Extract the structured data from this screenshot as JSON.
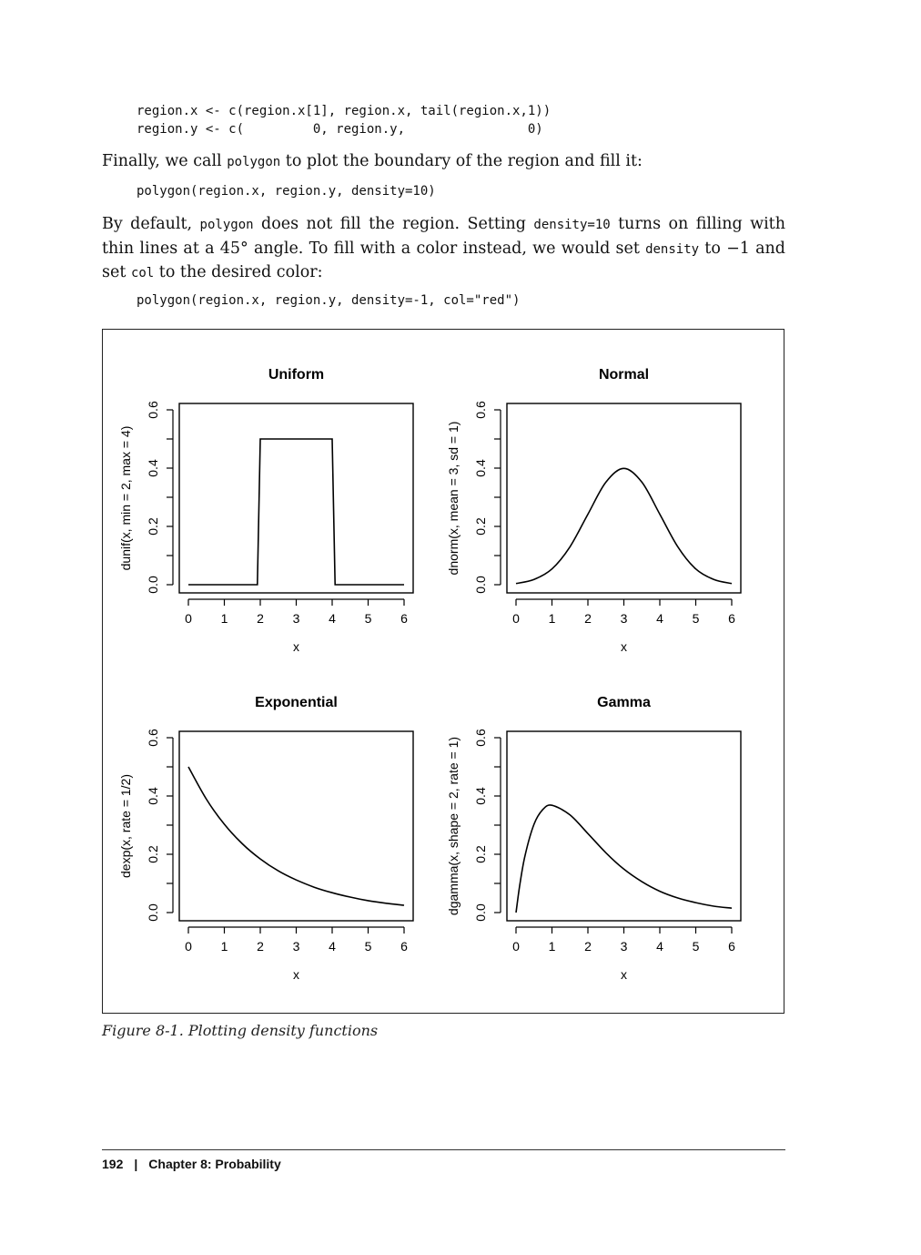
{
  "code1": {
    "line1": "region.x <- c(region.x[1], region.x, tail(region.x,1))",
    "line2": "region.y <- c(         0, region.y,                0)"
  },
  "para1": {
    "t1": "Finally, we call ",
    "c1": "polygon",
    "t2": " to plot the boundary of the region and fill it:"
  },
  "code2": {
    "line1": "polygon(region.x, region.y, density=10)"
  },
  "para2": {
    "t1": "By default, ",
    "c1": "polygon",
    "t2": " does not fill the region. Setting ",
    "c2": "density=10",
    "t3": " turns on filling with thin lines at a 45° angle. To fill with a color instead, we would set ",
    "c3": "density",
    "t4": " to −1 and set ",
    "c4": "col",
    "t5": " to the desired color:"
  },
  "code3": {
    "line1": "polygon(region.x, region.y, density=-1, col=\"red\")"
  },
  "chart_data": [
    {
      "type": "line",
      "title": "Uniform",
      "xlabel": "x",
      "ylabel": "dunif(x, min = 2, max = 4)",
      "xlim": [
        0,
        6
      ],
      "ylim": [
        0,
        0.6
      ],
      "xticks": [
        "0",
        "1",
        "2",
        "3",
        "4",
        "5",
        "6"
      ],
      "yticks": [
        "0.0",
        "0.2",
        "0.4",
        "0.6"
      ],
      "x": [
        0,
        1.92,
        2,
        4,
        4.08,
        6
      ],
      "y": [
        0,
        0,
        0.5,
        0.5,
        0,
        0
      ]
    },
    {
      "type": "line",
      "title": "Normal",
      "xlabel": "x",
      "ylabel": "dnorm(x, mean = 3, sd = 1)",
      "xlim": [
        0,
        6
      ],
      "ylim": [
        0,
        0.6
      ],
      "xticks": [
        "0",
        "1",
        "2",
        "3",
        "4",
        "5",
        "6"
      ],
      "yticks": [
        "0.0",
        "0.2",
        "0.4",
        "0.6"
      ],
      "x": [
        0,
        0.5,
        1,
        1.5,
        2,
        2.5,
        3,
        3.5,
        4,
        4.5,
        5,
        5.5,
        6
      ],
      "y": [
        0.004,
        0.018,
        0.054,
        0.13,
        0.242,
        0.352,
        0.399,
        0.352,
        0.242,
        0.13,
        0.054,
        0.018,
        0.004
      ]
    },
    {
      "type": "line",
      "title": "Exponential",
      "xlabel": "x",
      "ylabel": "dexp(x, rate = 1/2)",
      "xlim": [
        0,
        6
      ],
      "ylim": [
        0,
        0.6
      ],
      "xticks": [
        "0",
        "1",
        "2",
        "3",
        "4",
        "5",
        "6"
      ],
      "yticks": [
        "0.0",
        "0.2",
        "0.4",
        "0.6"
      ],
      "x": [
        0,
        0.5,
        1,
        1.5,
        2,
        2.5,
        3,
        3.5,
        4,
        4.5,
        5,
        5.5,
        6
      ],
      "y": [
        0.5,
        0.389,
        0.303,
        0.236,
        0.184,
        0.143,
        0.112,
        0.087,
        0.068,
        0.053,
        0.041,
        0.032,
        0.025
      ]
    },
    {
      "type": "line",
      "title": "Gamma",
      "xlabel": "x",
      "ylabel": "dgamma(x, shape = 2, rate = 1)",
      "xlim": [
        0,
        6
      ],
      "ylim": [
        0,
        0.6
      ],
      "xticks": [
        "0",
        "1",
        "2",
        "3",
        "4",
        "5",
        "6"
      ],
      "yticks": [
        "0.0",
        "0.2",
        "0.4",
        "0.6"
      ],
      "x": [
        0,
        0.1,
        0.25,
        0.5,
        0.75,
        1,
        1.5,
        2,
        2.5,
        3,
        3.5,
        4,
        4.5,
        5,
        5.5,
        6
      ],
      "y": [
        0,
        0.09,
        0.195,
        0.303,
        0.354,
        0.368,
        0.335,
        0.271,
        0.205,
        0.149,
        0.106,
        0.073,
        0.05,
        0.034,
        0.022,
        0.015
      ]
    }
  ],
  "caption": "Figure 8-1. Plotting density functions",
  "footer": {
    "page": "192",
    "sep": "|",
    "chapter": "Chapter 8:  Probability"
  }
}
